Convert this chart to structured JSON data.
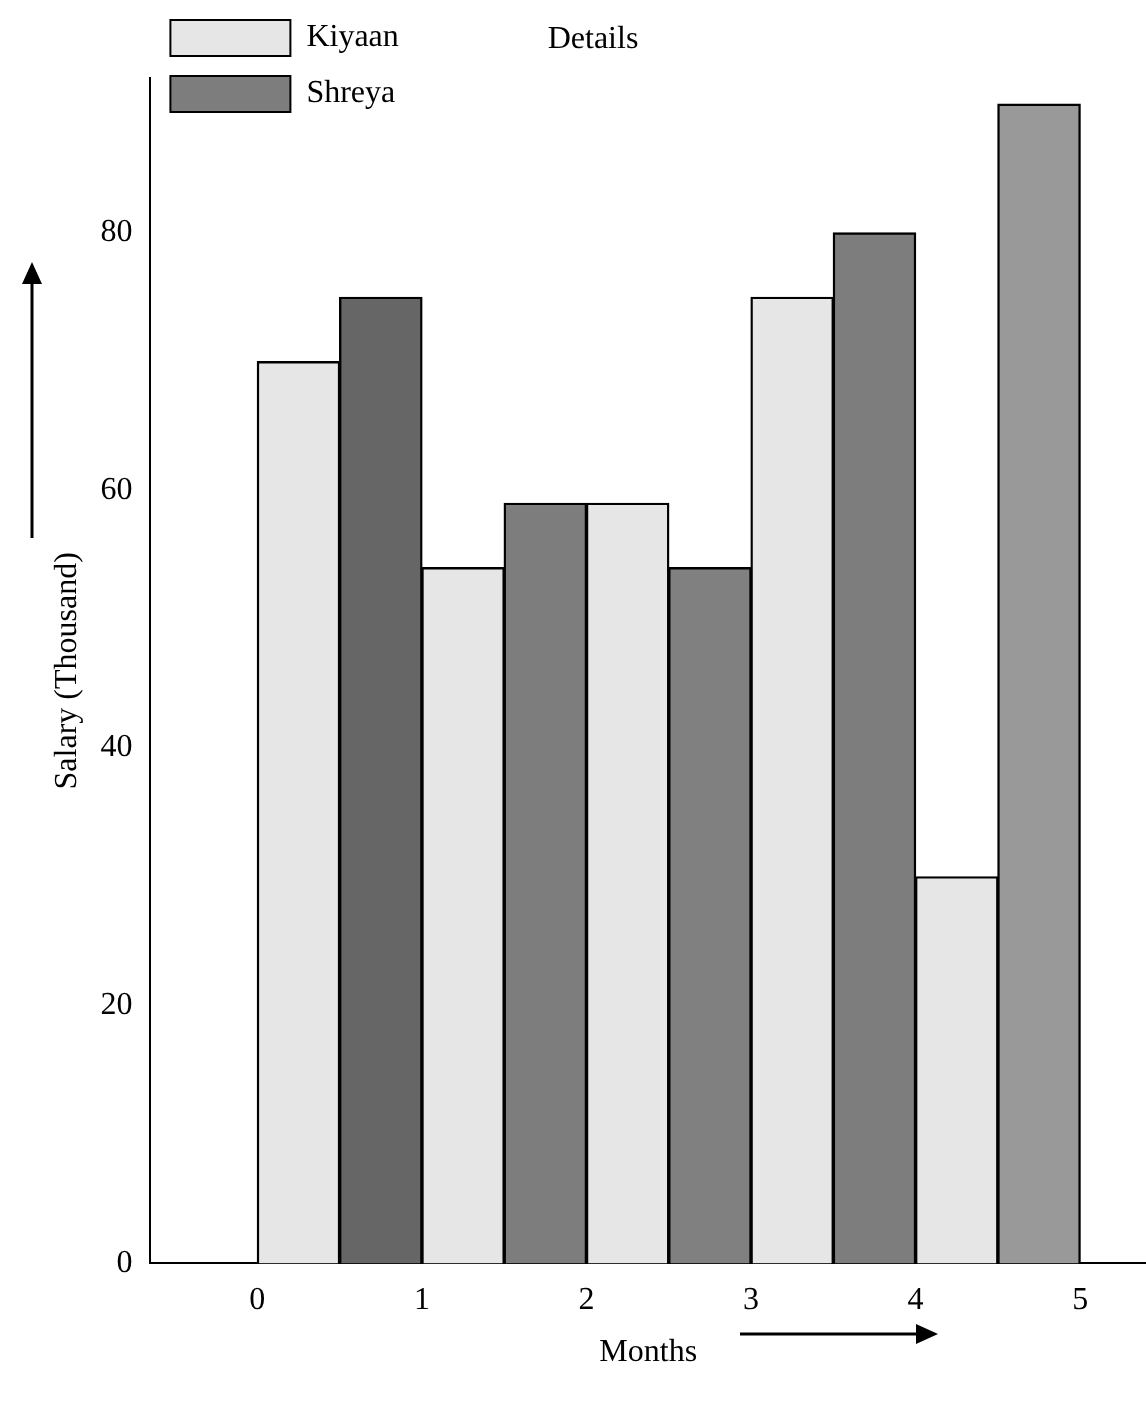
{
  "chart_data": {
    "type": "bar",
    "title": "Details",
    "xlabel": "Months",
    "ylabel": "Salary (Thousand)",
    "series": [
      {
        "name": "Kiyaan",
        "color": "#e6e6e6",
        "x": [
          0.25,
          1.25,
          2.25,
          3.25,
          4.25
        ],
        "values": [
          70,
          54,
          59,
          75,
          30
        ]
      },
      {
        "name": "Shreya",
        "colors": [
          "#666666",
          "#7d7d7d",
          "#808080",
          "#7d7d7d",
          "#999999"
        ],
        "color": "#7d7d7d",
        "x": [
          0.75,
          1.75,
          2.75,
          3.75,
          4.75
        ],
        "values": [
          75,
          59,
          54,
          80,
          90
        ]
      }
    ],
    "xlim": [
      -0.65,
      5.4
    ],
    "xticks": [
      0,
      1,
      2,
      3,
      4,
      5
    ],
    "ylim": [
      0,
      92
    ],
    "yticks": [
      0,
      20,
      40,
      60,
      80
    ],
    "grid": false,
    "legend": "top left"
  }
}
